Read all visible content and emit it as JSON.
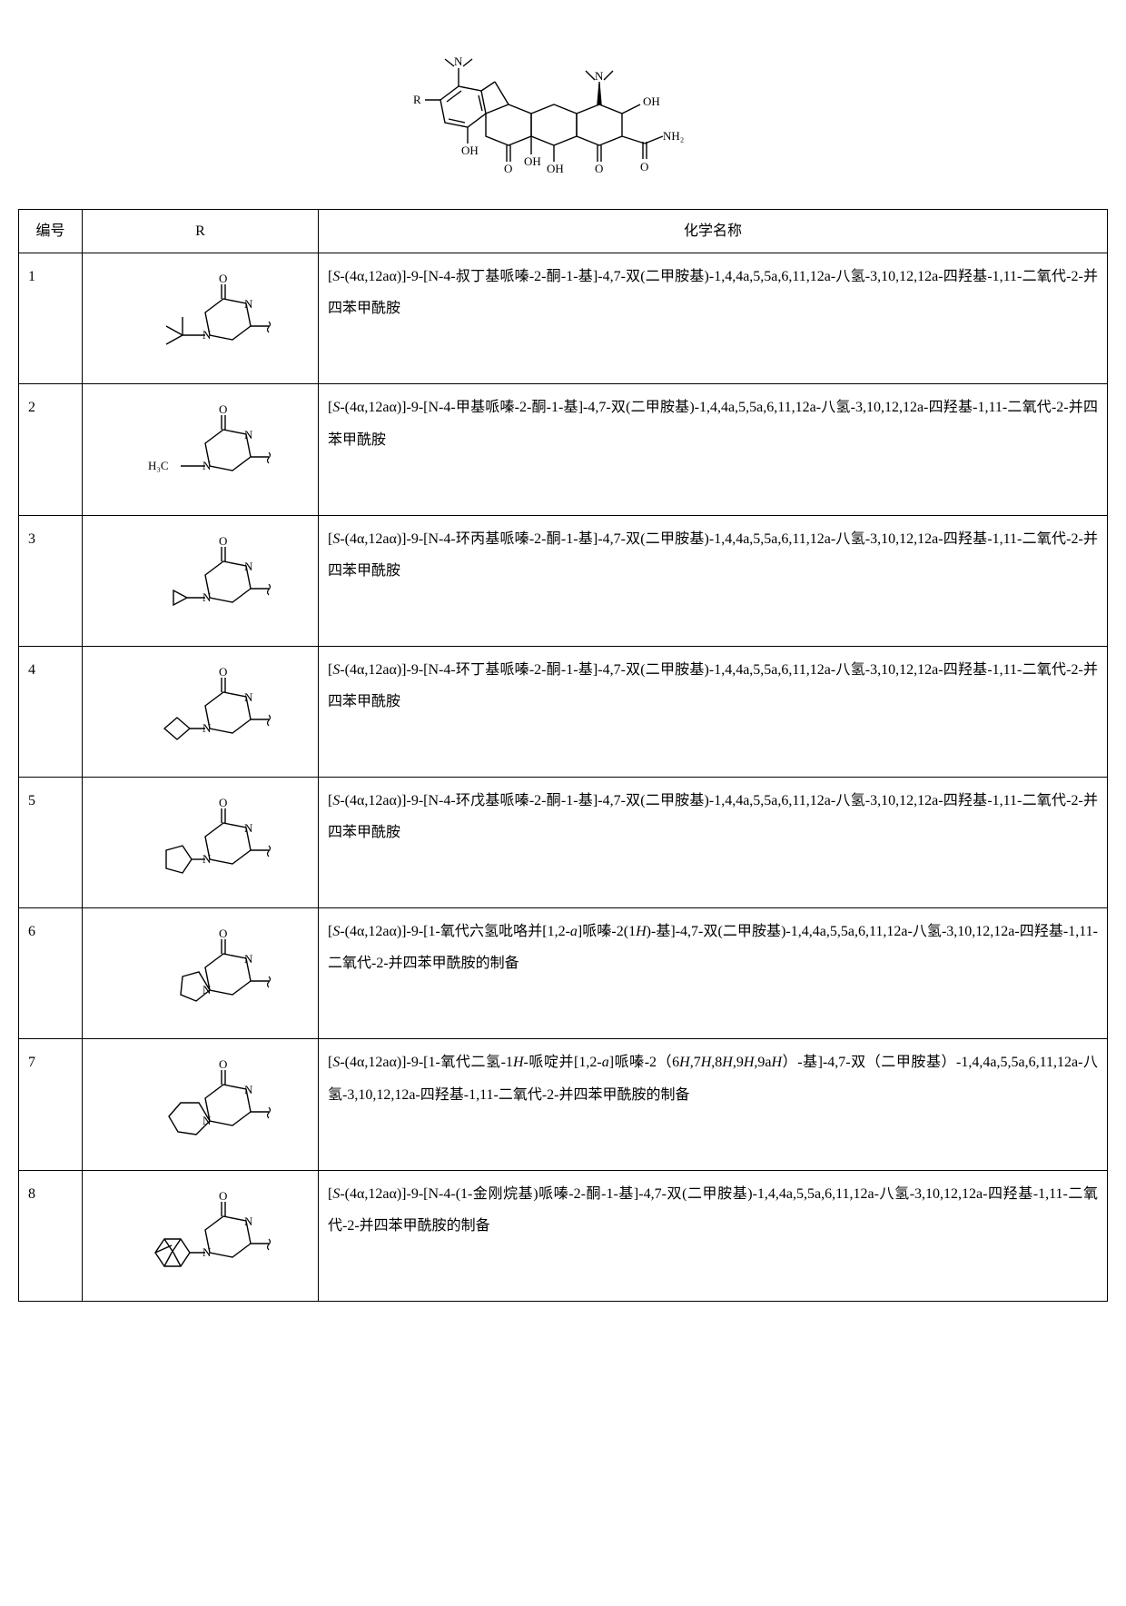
{
  "headers": {
    "col1": "编号",
    "col2": "R",
    "col3": "化学名称"
  },
  "rows": [
    {
      "num": "1",
      "r_label": "tert-butyl-piperazinone",
      "name": "[S-(4α,12aα)]-9-[N-4-叔丁基哌嗪-2-酮-1-基]-4,7-双(二甲胺基)-1,4,4a,5,5a,6,11,12a-八氢-3,10,12,12a-四羟基-1,11-二氧代-2-并四苯甲酰胺"
    },
    {
      "num": "2",
      "r_label": "methyl-piperazinone",
      "name": "[S-(4α,12aα)]-9-[N-4-甲基哌嗪-2-酮-1-基]-4,7-双(二甲胺基)-1,4,4a,5,5a,6,11,12a-八氢-3,10,12,12a-四羟基-1,11-二氧代-2-并四苯甲酰胺"
    },
    {
      "num": "3",
      "r_label": "cyclopropyl-piperazinone",
      "name": "[S-(4α,12aα)]-9-[N-4-环丙基哌嗪-2-酮-1-基]-4,7-双(二甲胺基)-1,4,4a,5,5a,6,11,12a-八氢-3,10,12,12a-四羟基-1,11-二氧代-2-并四苯甲酰胺"
    },
    {
      "num": "4",
      "r_label": "cyclobutyl-piperazinone",
      "name": "[S-(4α,12aα)]-9-[N-4-环丁基哌嗪-2-酮-1-基]-4,7-双(二甲胺基)-1,4,4a,5,5a,6,11,12a-八氢-3,10,12,12a-四羟基-1,11-二氧代-2-并四苯甲酰胺"
    },
    {
      "num": "5",
      "r_label": "cyclopentyl-piperazinone",
      "name": "[S-(4α,12aα)]-9-[N-4-环戊基哌嗪-2-酮-1-基]-4,7-双(二甲胺基)-1,4,4a,5,5a,6,11,12a-八氢-3,10,12,12a-四羟基-1,11-二氧代-2-并四苯甲酰胺"
    },
    {
      "num": "6",
      "r_label": "hexahydropyrrolo-piperazine",
      "name": "[S-(4α,12aα)]-9-[1-氧代六氢吡咯并[1,2-a]哌嗪-2(1H)-基]-4,7-双(二甲胺基)-1,4,4a,5,5a,6,11,12a-八氢-3,10,12,12a-四羟基-1,11-二氧代-2-并四苯甲酰胺的制备"
    },
    {
      "num": "7",
      "r_label": "dihydro-piperidino-piperazine",
      "name": "[S-(4α,12aα)]-9-[1-氧代二氢-1H-哌啶并[1,2-a]哌嗪-2（6H,7H,8H,9H,9aH）-基]-4,7-双（二甲胺基）-1,4,4a,5,5a,6,11,12a-八氢-3,10,12,12a-四羟基-1,11-二氧代-2-并四苯甲酰胺的制备"
    },
    {
      "num": "8",
      "r_label": "adamantyl-piperazinone",
      "name": "[S-(4α,12aα)]-9-[N-4-(1-金刚烷基)哌嗪-2-酮-1-基]-4,7-双(二甲胺基)-1,4,4a,5,5a,6,11,12a-八氢-3,10,12,12a-四羟基-1,11-二氧代-2-并四苯甲酰胺的制备"
    }
  ],
  "svg": {
    "stroke": "#000000",
    "stroke_width": 1.4,
    "font_family": "Times New Roman, serif",
    "font_size": 13
  }
}
